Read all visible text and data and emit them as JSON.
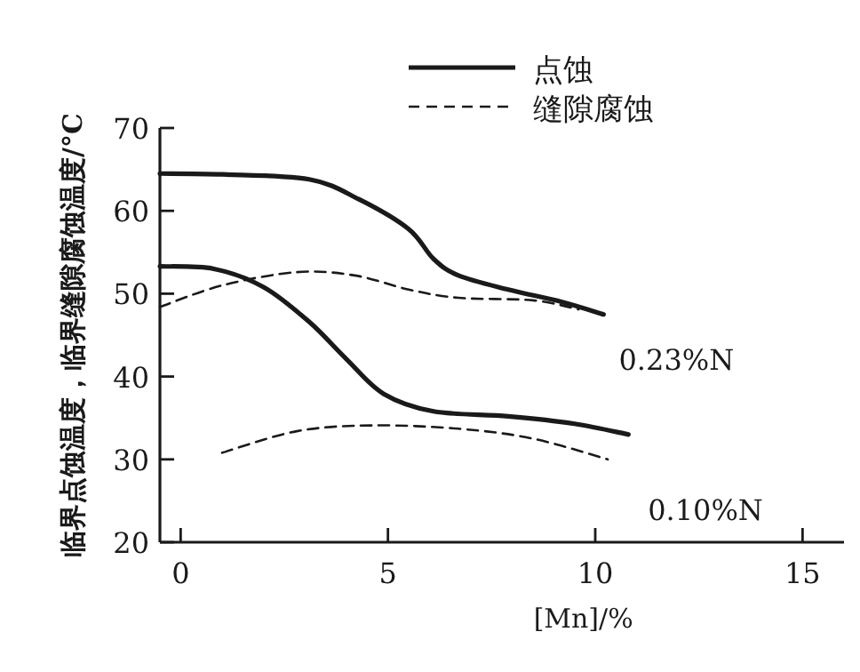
{
  "chart_data": {
    "type": "line",
    "xlabel": "[Mn]/%",
    "ylabel": "临界点蚀温度，临界缝隙腐蚀温度/°C",
    "xlim": [
      -0.5,
      16
    ],
    "ylim": [
      20,
      70
    ],
    "xticks": [
      0,
      5,
      10,
      15
    ],
    "yticks": [
      20,
      30,
      40,
      50,
      60,
      70
    ],
    "legend": "top right",
    "grid": false,
    "series": [
      {
        "name": "点蚀",
        "color": "#1a1a1a",
        "line_style": "solid",
        "x": [
          -0.5,
          1,
          3.1,
          4.3,
          5.5,
          6.1,
          6.7,
          7.9,
          9.2,
          10.2
        ],
        "values": [
          64.5,
          64.4,
          63.8,
          61.4,
          57.8,
          54.2,
          52.2,
          50.5,
          49,
          47.5
        ]
      },
      {
        "name": "缝隙腐蚀",
        "color": "#1a1a1a",
        "line_style": "dashed",
        "x": [
          -0.5,
          1,
          2.8,
          4.2,
          5.5,
          6.7,
          8.5,
          9.6
        ],
        "values": [
          48.4,
          51,
          52.6,
          52.2,
          50.5,
          49.5,
          49.2,
          48.1
        ]
      },
      {
        "color": "#1a1a1a",
        "line_style": "solid",
        "x": [
          -0.5,
          0.8,
          2,
          3.1,
          4,
          4.9,
          6.1,
          7.9,
          9.5,
          10.8
        ],
        "values": [
          53.3,
          53,
          50.8,
          46.6,
          42.1,
          37.9,
          35.8,
          35.2,
          34.3,
          33
        ]
      },
      {
        "color": "#1a1a1a",
        "line_style": "dashed",
        "x": [
          1,
          2.8,
          4.6,
          6.7,
          8.5,
          10.3
        ],
        "values": [
          30.8,
          33.4,
          34.1,
          33.7,
          32.5,
          30
        ]
      }
    ],
    "annotations": [
      "0.23%N",
      "0.10%N"
    ]
  }
}
